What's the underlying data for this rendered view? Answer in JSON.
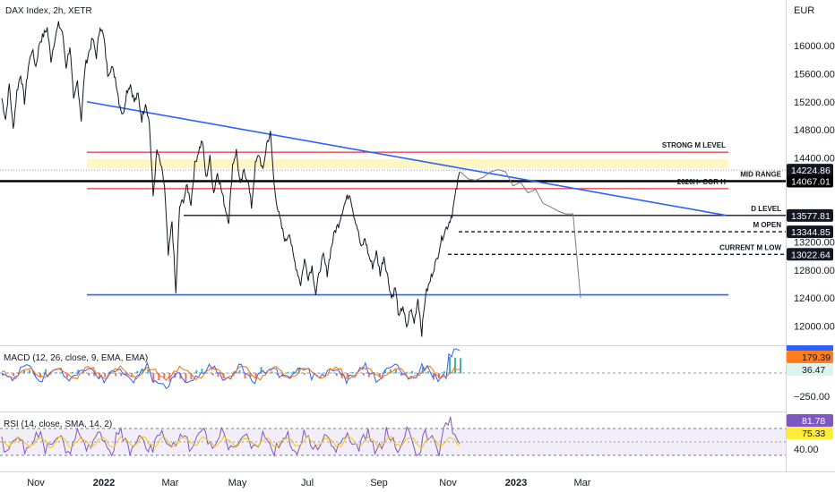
{
  "chart_data": [
    {
      "type": "line",
      "title": "DAX Index, 2h, XETR",
      "currency": "EUR",
      "ylim": [
        11750,
        16550
      ],
      "y_ticks": [
        "16000.00",
        "15600.00",
        "15200.00",
        "14800.00",
        "14400.00",
        "13200.00",
        "12800.00",
        "12400.00",
        "12000.00"
      ],
      "x_ticks": [
        {
          "label": "Nov",
          "bold": false
        },
        {
          "label": "2022",
          "bold": true
        },
        {
          "label": "Mar",
          "bold": false
        },
        {
          "label": "May",
          "bold": false
        },
        {
          "label": "Jul",
          "bold": false
        },
        {
          "label": "Sep",
          "bold": false
        },
        {
          "label": "Nov",
          "bold": false
        },
        {
          "label": "2023",
          "bold": true
        },
        {
          "label": "Mar",
          "bold": false
        }
      ],
      "series": [
        {
          "color": "#131722",
          "values": [
            15250,
            14950,
            15450,
            14800,
            15350,
            15600,
            15200,
            15700,
            15950,
            15700,
            16050,
            16150,
            16250,
            15800,
            16100,
            16300,
            16200,
            15700,
            16000,
            15200,
            15500,
            14950,
            15700,
            15900,
            16100,
            15850,
            16300,
            16100,
            15600,
            15700,
            15550,
            15200,
            15000,
            15350,
            15450,
            15200,
            15300,
            14950,
            15200,
            14900,
            13850,
            14500,
            14300,
            14000,
            13000,
            13500,
            12450,
            13700,
            13800,
            14000,
            13750,
            14300,
            14500,
            14650,
            14100,
            14400,
            13900,
            14200,
            13950,
            13700,
            13500,
            14300,
            14500,
            14000,
            14200,
            14100,
            13700,
            14300,
            14450,
            14200,
            14600,
            14750,
            14000,
            13650,
            13400,
            13200,
            13350,
            13000,
            12800,
            12600,
            12950,
            12700,
            12850,
            12450,
            12800,
            13000,
            12750,
            13100,
            13350,
            13450,
            13650,
            13800,
            13900,
            13600,
            13400,
            13100,
            13250,
            13000,
            12850,
            13050,
            12750,
            13000,
            12700,
            12400,
            12550,
            12100,
            12300,
            11950,
            12250,
            12050,
            12400,
            11900,
            12450,
            12600,
            12800,
            12950,
            13200,
            13350,
            13450,
            13600,
            13900,
            14200
          ],
          "x_start": "2021-10",
          "x_end": "2022-11"
        }
      ],
      "projection_path": [
        14200,
        14100,
        14080,
        14120,
        14200,
        14230,
        14200,
        14000,
        14050,
        13900,
        13950,
        13750,
        13700,
        13640,
        13600,
        13600,
        12400
      ],
      "levels": [
        {
          "label": "STRONG M LEVEL",
          "value": 14480,
          "color": "#e5323c",
          "style": "solid"
        },
        {
          "label": "MID RANGE",
          "value": 14067,
          "color": "#000000",
          "style": "thick"
        },
        {
          "label": "2020H- COR H",
          "value": 13960,
          "color": "#e5323c",
          "style": "solid"
        },
        {
          "label": "D LEVEL",
          "value": 13577.81,
          "color": "#131722",
          "style": "solid"
        },
        {
          "label": "M OPEN",
          "value": 13344.85,
          "color": "#131722",
          "style": "dashed"
        },
        {
          "label": "CURRENT M LOW",
          "value": 13022.64,
          "color": "#131722",
          "style": "dashed"
        },
        {
          "label": "",
          "value": 12445,
          "color": "#2962ff",
          "style": "solid"
        }
      ],
      "zone": {
        "from": 14250,
        "to": 14380,
        "color": "#fff6c4"
      },
      "trendline": {
        "from": 15200,
        "to": 13580,
        "color": "#2962ff"
      },
      "price_tags": [
        {
          "value": "14224.86",
          "price": 14224.86,
          "bg": "#131722",
          "fg": "#ffffff"
        },
        {
          "value": "14067.01",
          "price": 14067.01,
          "bg": "#000000",
          "fg": "#ffffff"
        },
        {
          "value": "13577.81",
          "price": 13577.81,
          "bg": "#131722",
          "fg": "#ffffff"
        },
        {
          "value": "13344.85",
          "price": 13344.85,
          "bg": "#131722",
          "fg": "#ffffff"
        },
        {
          "value": "13022.64",
          "price": 13022.64,
          "bg": "#131722",
          "fg": "#ffffff"
        }
      ]
    },
    {
      "type": "line",
      "title": "MACD (12, 26, close, 9, EMA, EMA)",
      "y_ticks": [
        "−250.00"
      ],
      "price_tags": [
        {
          "value": "179.39",
          "bg": "#ff7d1f",
          "fg": "#131722"
        },
        {
          "value": "36.47",
          "bg": "#dff3ee",
          "fg": "#131722"
        }
      ]
    },
    {
      "type": "line",
      "title": "RSI (14, close, SMA, 14, 2)",
      "y_ticks": [
        "40.00"
      ],
      "price_tags": [
        {
          "value": "81.78",
          "bg": "#7e57c2",
          "fg": "#ffffff"
        },
        {
          "value": "75.33",
          "bg": "#ffeb3b",
          "fg": "#131722"
        }
      ]
    }
  ]
}
